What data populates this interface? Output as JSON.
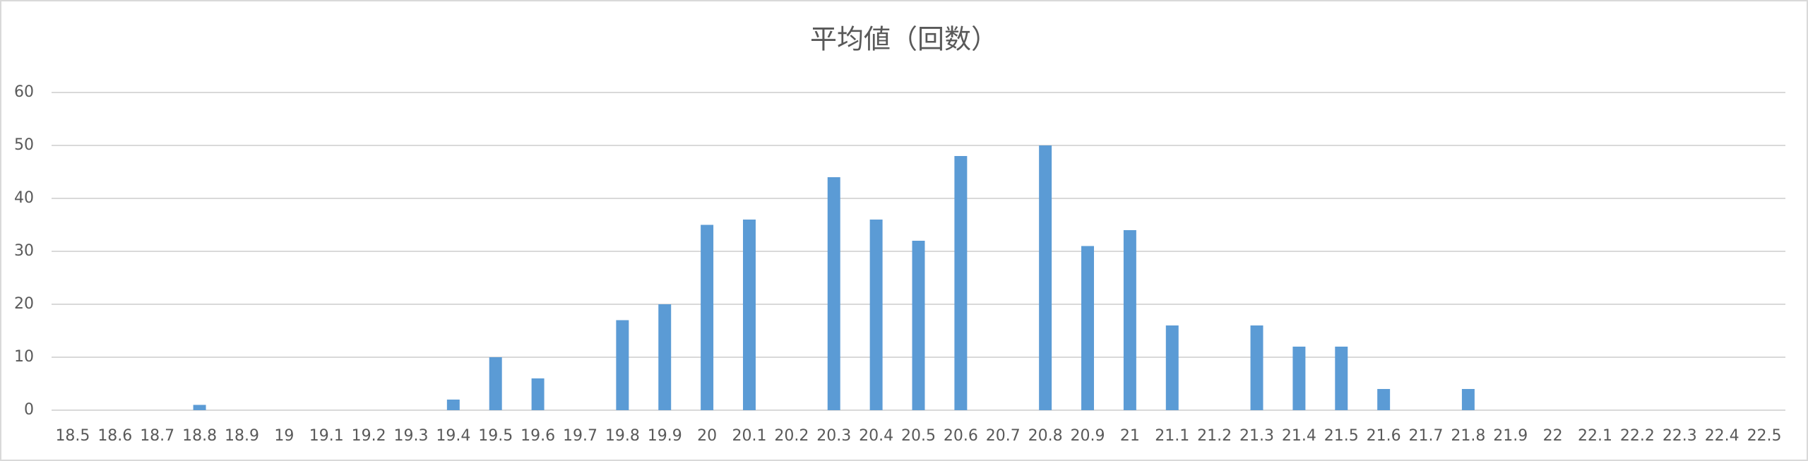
{
  "chart_data": {
    "type": "bar",
    "title": "平均値（回数）",
    "categories": [
      "18.5",
      "18.6",
      "18.7",
      "18.8",
      "18.9",
      "19",
      "19.1",
      "19.2",
      "19.3",
      "19.4",
      "19.5",
      "19.6",
      "19.7",
      "19.8",
      "19.9",
      "20",
      "20.1",
      "20.2",
      "20.3",
      "20.4",
      "20.5",
      "20.6",
      "20.7",
      "20.8",
      "20.9",
      "21",
      "21.1",
      "21.2",
      "21.3",
      "21.4",
      "21.5",
      "21.6",
      "21.7",
      "21.8",
      "21.9",
      "22",
      "22.1",
      "22.2",
      "22.3",
      "22.4",
      "22.5"
    ],
    "values": [
      0,
      0,
      0,
      1,
      0,
      0,
      0,
      0,
      0,
      2,
      10,
      6,
      0,
      17,
      20,
      35,
      36,
      0,
      44,
      36,
      32,
      48,
      0,
      50,
      31,
      34,
      16,
      0,
      16,
      12,
      12,
      4,
      0,
      4,
      0,
      0,
      0,
      0,
      0,
      0,
      0
    ],
    "color": "#5b9bd5",
    "ylim": [
      0,
      60
    ],
    "yticks": [
      0,
      10,
      20,
      30,
      40,
      50,
      60
    ],
    "grid": true
  }
}
